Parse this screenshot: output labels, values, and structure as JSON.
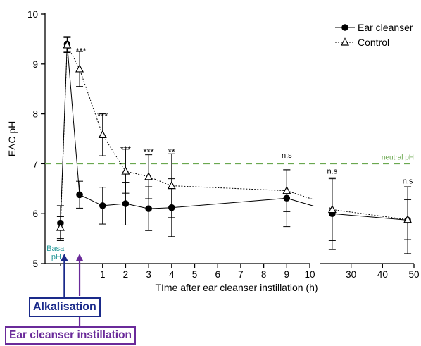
{
  "chart_data": {
    "type": "line",
    "xlabel": "TIme after ear cleanser instillation (h)",
    "ylabel": "EAC pH",
    "ylim": [
      5,
      10
    ],
    "yticks": [
      "5",
      "6",
      "7",
      "8",
      "9",
      "10"
    ],
    "xticks_left": [
      "1",
      "2",
      "3",
      "4",
      "5",
      "6",
      "7",
      "8",
      "9",
      "10"
    ],
    "xticks_right": [
      "30",
      "40",
      "50"
    ],
    "x_axis_break": "between 10 and 20",
    "series": [
      {
        "name": "Ear cleanser",
        "marker": "filled-circle",
        "line": "solid",
        "color": "#000000",
        "points": [
          {
            "x": "basal",
            "y": 5.81,
            "err": 0.35
          },
          {
            "x": "0 (alkalisation)",
            "y": 9.4,
            "err": 0.15
          },
          {
            "x": 0,
            "y": 6.38,
            "err": 0.27
          },
          {
            "x": 1,
            "y": 6.16,
            "err": 0.37
          },
          {
            "x": 2,
            "y": 6.2,
            "err": 0.43
          },
          {
            "x": 3,
            "y": 6.1,
            "err": 0.44
          },
          {
            "x": 4,
            "y": 6.12,
            "err": 0.58
          },
          {
            "x": 9,
            "y": 6.31,
            "err": 0.57
          },
          {
            "x": 24,
            "y": 6.0,
            "err": 0.72
          },
          {
            "x": 48,
            "y": 5.87,
            "err": 0.67
          }
        ]
      },
      {
        "name": "Control",
        "marker": "open-triangle",
        "line": "dotted",
        "color": "#000000",
        "points": [
          {
            "x": "basal",
            "y": 5.72,
            "err": 0.22
          },
          {
            "x": "0 (alkalisation)",
            "y": 9.38,
            "err": 0.15
          },
          {
            "x": 0,
            "y": 8.9,
            "err": 0.35
          },
          {
            "x": 1,
            "y": 7.58,
            "err": 0.42
          },
          {
            "x": 2,
            "y": 6.85,
            "err": 0.44
          },
          {
            "x": 3,
            "y": 6.74,
            "err": 0.44
          },
          {
            "x": 4,
            "y": 6.56,
            "err": 0.64
          },
          {
            "x": 9,
            "y": 6.46,
            "err": 0.42
          },
          {
            "x": 24,
            "y": 6.08,
            "err": 0.62
          },
          {
            "x": 48,
            "y": 5.88,
            "err": 0.4
          }
        ]
      }
    ],
    "reference_line": {
      "label": "neutral pH",
      "y": 7.0,
      "color": "#6aa84f"
    },
    "annotations": [
      {
        "text": "Basal\npH",
        "color": "#2a9a9a"
      },
      {
        "text": "***",
        "x": 0,
        "y": 9.25
      },
      {
        "text": "***",
        "x": 1,
        "y": 7.95
      },
      {
        "text": "***",
        "x": 2,
        "y": 7.28
      },
      {
        "text": "***",
        "x": 3,
        "y": 7.23
      },
      {
        "text": "**",
        "x": 4,
        "y": 7.23
      },
      {
        "text": "n.s",
        "x": 9,
        "y": 7.12
      },
      {
        "text": "n.s",
        "x": 24,
        "y": 6.8
      },
      {
        "text": "n.s",
        "x": 48,
        "y": 6.6
      }
    ],
    "events": [
      {
        "label": "Alkalisation",
        "color": "#1a2a8a"
      },
      {
        "label": "Ear cleanser instillation",
        "color": "#6a2a9a"
      }
    ],
    "legend_position": "top-right",
    "grid": false
  }
}
